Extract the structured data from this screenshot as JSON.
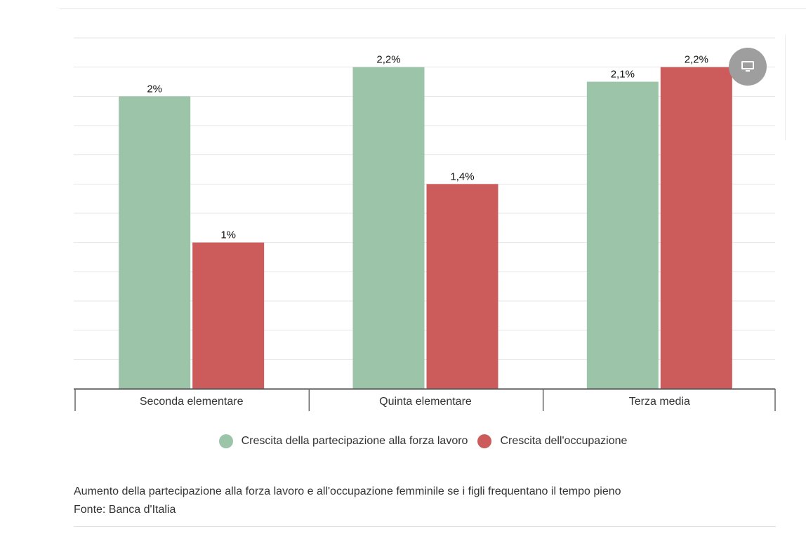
{
  "chart_data": {
    "type": "bar",
    "categories": [
      "Seconda elementare",
      "Quinta elementare",
      "Terza media"
    ],
    "series": [
      {
        "name": "Crescita della partecipazione alla forza lavoro",
        "values": [
          2,
          2.2,
          2.1
        ],
        "labels": [
          "2%",
          "2,2%",
          "2,1%"
        ],
        "color": "#9bc4a8"
      },
      {
        "name": "Crescita dell'occupazione",
        "values": [
          1,
          1.4,
          2.2
        ],
        "labels": [
          "1%",
          "1,4%",
          "2,2%"
        ],
        "color": "#cc5c5b"
      }
    ],
    "ylim": [
      0,
      2.4
    ],
    "grid": true,
    "legend": "bottom-center",
    "caption": "Aumento della partecipazione alla forza lavoro e all'occupazione femminile se i figli frequentano il tempo pieno",
    "source": "Fonte: Banca d'Italia"
  },
  "controls": {
    "display_icon": "monitor-icon"
  }
}
